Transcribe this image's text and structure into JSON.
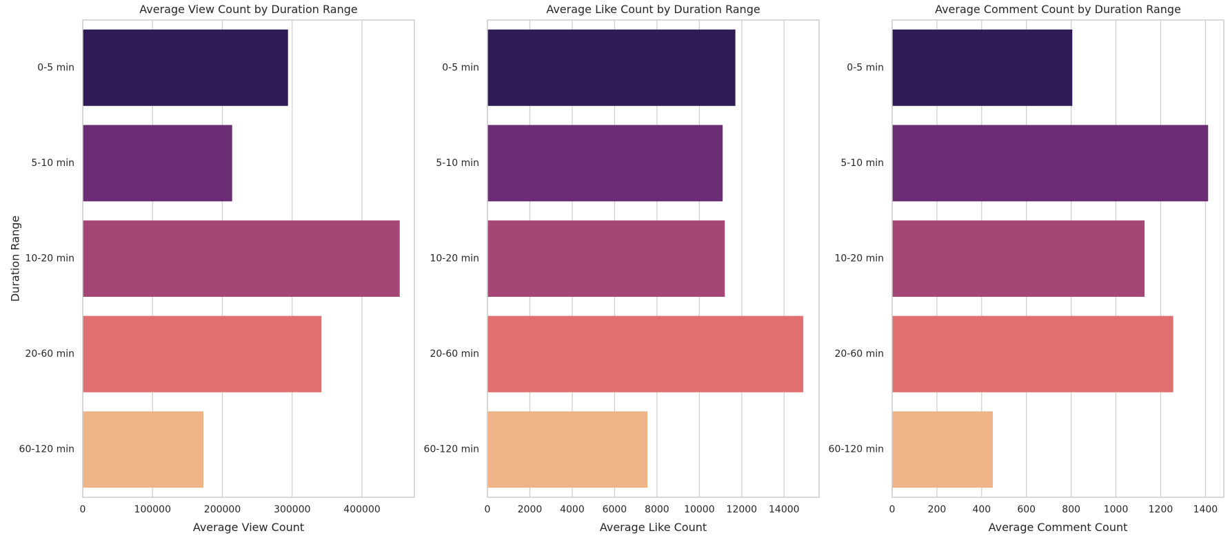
{
  "chart_data": [
    {
      "type": "bar",
      "orientation": "horizontal",
      "title": "Average View Count by Duration Range",
      "xlabel": "Average View Count",
      "ylabel": "Duration Range",
      "categories": [
        "0-5 min",
        "5-10 min",
        "10-20 min",
        "20-60 min",
        "60-120 min"
      ],
      "values": [
        294000,
        214000,
        454000,
        342000,
        173000
      ],
      "xlim": [
        0,
        475000
      ],
      "xticks": [
        0,
        100000,
        200000,
        300000,
        400000
      ],
      "xtick_labels": [
        "0",
        "100000",
        "200000",
        "300000",
        "400000"
      ],
      "grid": true,
      "colors": [
        "#2f1b56",
        "#6a2c73",
        "#a54776",
        "#df706f",
        "#efb388"
      ]
    },
    {
      "type": "bar",
      "orientation": "horizontal",
      "title": "Average Like Count by Duration Range",
      "xlabel": "Average Like Count",
      "ylabel": "",
      "categories": [
        "0-5 min",
        "5-10 min",
        "10-20 min",
        "20-60 min",
        "60-120 min"
      ],
      "values": [
        11700,
        11100,
        11200,
        14900,
        7550
      ],
      "xlim": [
        0,
        15650
      ],
      "xticks": [
        0,
        2000,
        4000,
        6000,
        8000,
        10000,
        12000,
        14000
      ],
      "xtick_labels": [
        "0",
        "2000",
        "4000",
        "6000",
        "8000",
        "10000",
        "12000",
        "14000"
      ],
      "grid": true,
      "colors": [
        "#2f1b56",
        "#6a2c73",
        "#a54776",
        "#df706f",
        "#efb388"
      ]
    },
    {
      "type": "bar",
      "orientation": "horizontal",
      "title": "Average Comment Count by Duration Range",
      "xlabel": "Average Comment Count",
      "ylabel": "",
      "categories": [
        "0-5 min",
        "5-10 min",
        "10-20 min",
        "20-60 min",
        "60-120 min"
      ],
      "values": [
        805,
        1412,
        1128,
        1256,
        450
      ],
      "xlim": [
        0,
        1482
      ],
      "xticks": [
        0,
        200,
        400,
        600,
        800,
        1000,
        1200,
        1400
      ],
      "xtick_labels": [
        "0",
        "200",
        "400",
        "600",
        "800",
        "1000",
        "1200",
        "1400"
      ],
      "grid": true,
      "colors": [
        "#2f1b56",
        "#6a2c73",
        "#a54776",
        "#df706f",
        "#efb388"
      ]
    }
  ]
}
